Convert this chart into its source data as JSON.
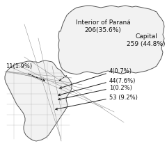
{
  "background_color": "#ffffff",
  "labels": {
    "interior_parana": "Interior of Paraná\n206(35.6%)",
    "capital": "Capital\n259 (44.8%)",
    "label_11": "11(1.9%)",
    "label_4": "4(0.7%)",
    "label_44": "44(7.6%)",
    "label_1": "1(0.2%)",
    "label_53": "53 (9.2%)"
  },
  "fontsize": 6.5,
  "map_facecolor": "#f2f2f2",
  "map_edgecolor": "#555555",
  "arrow_color": "#222222"
}
